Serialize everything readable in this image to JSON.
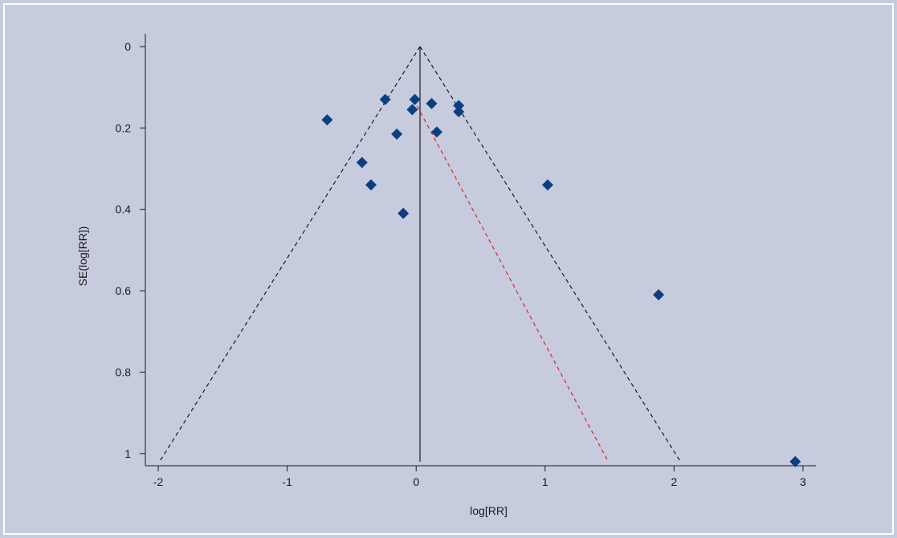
{
  "chart_data": {
    "type": "scatter",
    "title": "",
    "xlabel": "log[RR]",
    "ylabel": "SE(log[RR])",
    "xlim": [
      -2.1,
      3.1
    ],
    "ylim": [
      0,
      1.03
    ],
    "y_inverted": true,
    "x_ticks": [
      -2,
      -1,
      0,
      1,
      2,
      3
    ],
    "y_ticks": [
      0,
      0.2,
      0.4,
      0.6,
      0.8,
      1
    ],
    "x_tick_labels": [
      "-2",
      "-1",
      "0",
      "1",
      "2",
      "3"
    ],
    "y_tick_labels": [
      "0",
      "0.2",
      "0.4",
      "0.6",
      "0.8",
      "1"
    ],
    "grid": false,
    "legend": "none",
    "pooled_estimate": 0.03,
    "funnel_lines": [
      {
        "x": [
          0.03,
          -1.99
        ],
        "y": [
          0,
          1.02
        ],
        "style": "dashed",
        "color": "#1a1a1a"
      },
      {
        "x": [
          0.03,
          2.05
        ],
        "y": [
          0,
          1.02
        ],
        "style": "dashed",
        "color": "#1a1a1a"
      }
    ],
    "reference_line": {
      "x": [
        0.03,
        0.03
      ],
      "y": [
        0,
        1.02
      ],
      "style": "solid",
      "color": "#1a1a1a"
    },
    "regression_line": {
      "x": [
        -0.02,
        1.49
      ],
      "y": [
        0.13,
        1.02
      ],
      "style": "dashed",
      "color": "#e0262b"
    },
    "points": [
      {
        "x": -0.69,
        "y": 0.18
      },
      {
        "x": -0.24,
        "y": 0.13
      },
      {
        "x": -0.01,
        "y": 0.13
      },
      {
        "x": -0.03,
        "y": 0.155
      },
      {
        "x": 0.12,
        "y": 0.14
      },
      {
        "x": 0.33,
        "y": 0.145
      },
      {
        "x": 0.33,
        "y": 0.16
      },
      {
        "x": -0.15,
        "y": 0.215
      },
      {
        "x": 0.16,
        "y": 0.21
      },
      {
        "x": -0.42,
        "y": 0.285
      },
      {
        "x": -0.35,
        "y": 0.34
      },
      {
        "x": -0.1,
        "y": 0.41
      },
      {
        "x": 1.02,
        "y": 0.34
      },
      {
        "x": 1.88,
        "y": 0.61
      },
      {
        "x": 2.94,
        "y": 1.02
      }
    ],
    "colors": {
      "background": "#c7cbde",
      "panel_border": "#ffffff",
      "point": "#0c3f80",
      "axis": "#1a1a1a",
      "regression": "#e0262b"
    }
  }
}
